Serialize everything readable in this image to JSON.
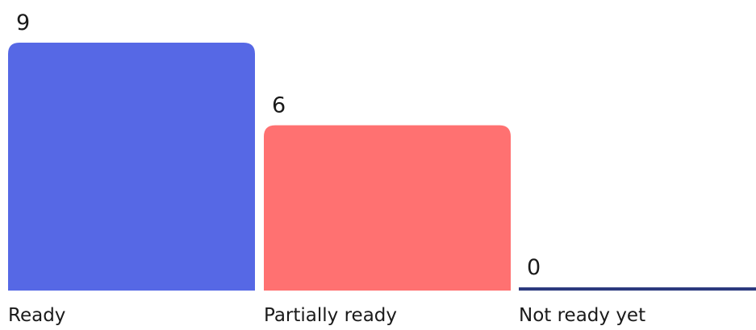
{
  "chart_data": {
    "type": "bar",
    "categories": [
      "Ready",
      "Partially ready",
      "Not ready yet"
    ],
    "values": [
      9,
      6,
      0
    ],
    "colors": [
      "#5668E5",
      "#FF7171",
      "#2B3A7E"
    ],
    "ylim": [
      0,
      9
    ],
    "grid": false,
    "legend": "none"
  }
}
